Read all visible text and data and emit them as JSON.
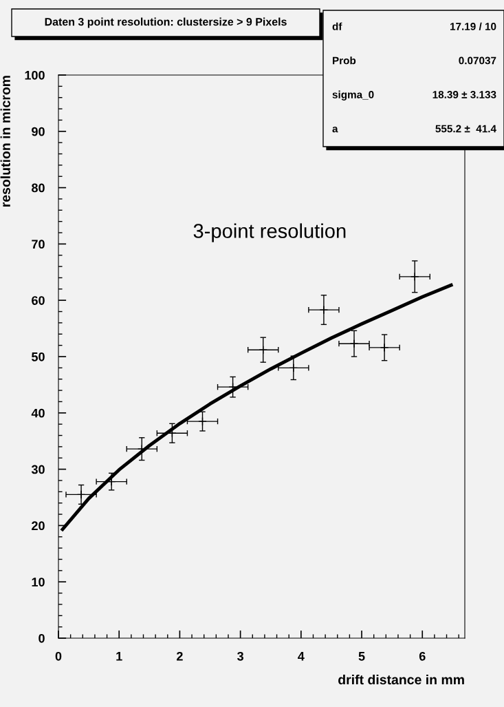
{
  "chart_data": {
    "type": "scatter",
    "title": "Daten 3 point resolution: clustersize > 9 Pixels",
    "xlabel": "drift distance in mm",
    "ylabel": "resolution in microm",
    "annotations": [
      "3-point resolution",
      "df",
      "17.19 / 10",
      "Prob",
      "0.07037",
      "sigma_0",
      "18.39 ± 3.133",
      "a",
      "555.2 ±  41.4"
    ],
    "series": [
      {
        "marker": "cross",
        "color": "#000000",
        "x": [
          0.375,
          0.875,
          1.375,
          1.875,
          2.375,
          2.875,
          3.375,
          3.875,
          4.375,
          4.875,
          5.375,
          5.875
        ],
        "values": [
          25.5,
          27.8,
          33.6,
          36.4,
          38.5,
          44.6,
          51.2,
          48.0,
          58.3,
          52.3,
          51.6,
          64.2
        ],
        "errors": [
          1.7,
          1.5,
          2.0,
          1.7,
          1.7,
          1.8,
          2.2,
          2.1,
          2.6,
          2.3,
          2.3,
          2.8
        ],
        "xerrors": [
          0.25,
          0.25,
          0.25,
          0.25,
          0.25,
          0.25,
          0.25,
          0.25,
          0.25,
          0.25,
          0.25,
          0.25
        ]
      },
      {
        "type": "line",
        "color": "#000000",
        "x": [
          0.05,
          0.5,
          1,
          1.5,
          2,
          2.5,
          3,
          3.5,
          4,
          4.5,
          5,
          5.5,
          6,
          6.5
        ],
        "values": [
          19.1,
          24.8,
          29.9,
          34.2,
          38.1,
          41.6,
          44.8,
          47.8,
          50.6,
          53.3,
          55.8,
          58.2,
          60.6,
          62.8
        ]
      }
    ],
    "line_style": "solid",
    "grid": false,
    "legend": false,
    "xlim": [
      0,
      6.7
    ],
    "xticks": [
      0,
      1,
      2,
      3,
      4,
      5,
      6
    ],
    "ylim": [
      0,
      100
    ],
    "yticks": [
      0,
      10,
      20,
      30,
      40,
      50,
      60,
      70,
      80,
      90,
      100
    ]
  }
}
